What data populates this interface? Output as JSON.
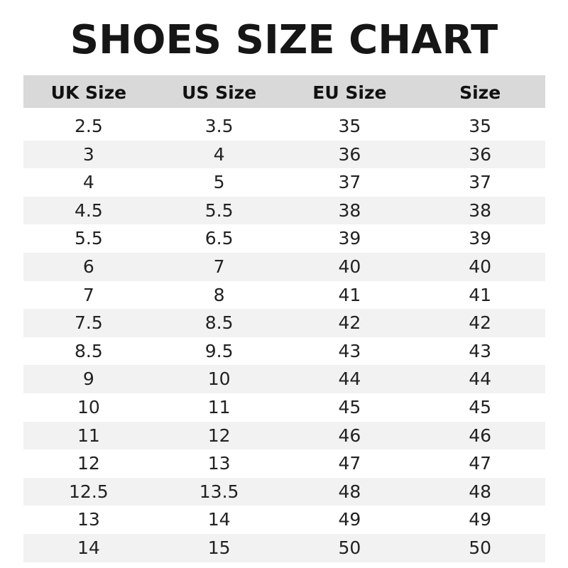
{
  "title": "SHOES SIZE CHART",
  "columns": [
    "UK Size",
    "US Size",
    "EU Size",
    "Size"
  ],
  "colors": {
    "header_bg": "#d9d9d9",
    "stripe_bg": "#f2f2f2"
  },
  "rows": [
    [
      "2.5",
      "3.5",
      "35",
      "35"
    ],
    [
      "3",
      "4",
      "36",
      "36"
    ],
    [
      "4",
      "5",
      "37",
      "37"
    ],
    [
      "4.5",
      "5.5",
      "38",
      "38"
    ],
    [
      "5.5",
      "6.5",
      "39",
      "39"
    ],
    [
      "6",
      "7",
      "40",
      "40"
    ],
    [
      "7",
      "8",
      "41",
      "41"
    ],
    [
      "7.5",
      "8.5",
      "42",
      "42"
    ],
    [
      "8.5",
      "9.5",
      "43",
      "43"
    ],
    [
      "9",
      "10",
      "44",
      "44"
    ],
    [
      "10",
      "11",
      "45",
      "45"
    ],
    [
      "11",
      "12",
      "46",
      "46"
    ],
    [
      "12",
      "13",
      "47",
      "47"
    ],
    [
      "12.5",
      "13.5",
      "48",
      "48"
    ],
    [
      "13",
      "14",
      "49",
      "49"
    ],
    [
      "14",
      "15",
      "50",
      "50"
    ]
  ]
}
